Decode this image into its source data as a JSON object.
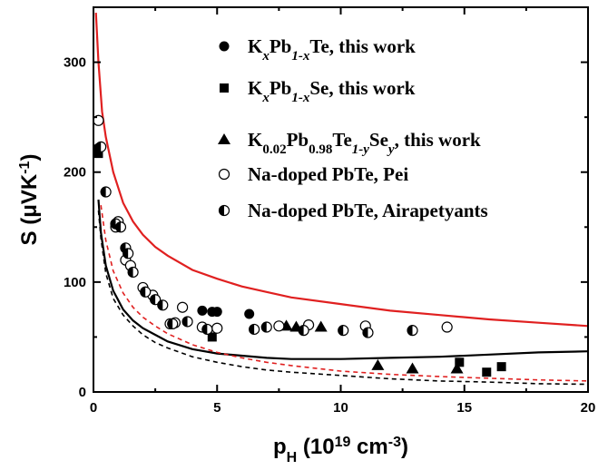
{
  "chart_data": {
    "type": "scatter",
    "xlabel": {
      "base": "p",
      "sub": "H",
      "units_pre": " (10",
      "units_sup": "19",
      "units_mid": " cm",
      "units_sup2": "-3",
      "units_post": ")"
    },
    "ylabel": {
      "pre": "S (μVK",
      "sup": "-1",
      "post": ")"
    },
    "xlim": [
      0,
      20
    ],
    "ylim": [
      0,
      350
    ],
    "xticks": [
      0,
      5,
      10,
      15,
      20
    ],
    "yticks": [
      0,
      100,
      200,
      300
    ],
    "grid": false,
    "legend_position": "top-right",
    "series": [
      {
        "name": "KxPb1-xTe, this work",
        "legend_parts": [
          [
            "K",
            "n"
          ],
          [
            "x",
            "sub-i"
          ],
          [
            "Pb",
            "n"
          ],
          [
            "1-x",
            "sub-i"
          ],
          [
            "Te, this work",
            "n"
          ]
        ],
        "marker": "circle-filled",
        "points": [
          [
            0.2,
            222
          ],
          [
            4.4,
            74
          ],
          [
            4.8,
            73
          ],
          [
            5.0,
            73
          ],
          [
            6.3,
            71
          ]
        ]
      },
      {
        "name": "KxPb1-xSe, this work",
        "legend_parts": [
          [
            "K",
            "n"
          ],
          [
            "x",
            "sub-i"
          ],
          [
            "Pb",
            "n"
          ],
          [
            "1-x",
            "sub-i"
          ],
          [
            "Se, this work",
            "n"
          ]
        ],
        "marker": "square-filled",
        "points": [
          [
            0.2,
            217
          ],
          [
            4.8,
            50
          ],
          [
            14.8,
            27
          ],
          [
            15.9,
            18
          ],
          [
            16.5,
            23
          ]
        ]
      },
      {
        "name": "K0.02Pb0.98Te1-ySey, this work",
        "legend_parts": [
          [
            "K",
            "n"
          ],
          [
            "0.02",
            "sub"
          ],
          [
            "Pb",
            "n"
          ],
          [
            "0.98",
            "sub"
          ],
          [
            "Te",
            "n"
          ],
          [
            "1-y",
            "sub-i"
          ],
          [
            "Se",
            "n"
          ],
          [
            "y",
            "sub-i"
          ],
          [
            ",  this work",
            "n"
          ]
        ],
        "marker": "triangle-filled",
        "points": [
          [
            7.8,
            60
          ],
          [
            8.2,
            59
          ],
          [
            9.2,
            59
          ],
          [
            11.5,
            24
          ],
          [
            12.9,
            21
          ],
          [
            14.7,
            21
          ]
        ]
      },
      {
        "name": "Na-doped PbTe, Pei",
        "legend_parts": [
          [
            "Na-doped PbTe, Pei",
            "n"
          ]
        ],
        "marker": "circle-open",
        "points": [
          [
            0.2,
            247
          ],
          [
            0.9,
            150
          ],
          [
            1.0,
            155
          ],
          [
            1.3,
            120
          ],
          [
            1.5,
            115
          ],
          [
            2.0,
            95
          ],
          [
            2.4,
            88
          ],
          [
            3.1,
            62
          ],
          [
            3.3,
            63
          ],
          [
            3.6,
            77
          ],
          [
            4.4,
            59
          ],
          [
            5.0,
            58
          ],
          [
            7.5,
            60
          ],
          [
            8.7,
            61
          ],
          [
            11.0,
            60
          ],
          [
            14.3,
            59
          ]
        ]
      },
      {
        "name": "Na-doped PbTe, Airapetyants",
        "legend_parts": [
          [
            "Na-doped PbTe, Airapetyants",
            "n"
          ]
        ],
        "marker": "circle-half",
        "points": [
          [
            0.3,
            223
          ],
          [
            0.5,
            182
          ],
          [
            0.9,
            153
          ],
          [
            1.1,
            150
          ],
          [
            1.3,
            131
          ],
          [
            1.4,
            126
          ],
          [
            1.6,
            109
          ],
          [
            2.1,
            91
          ],
          [
            2.5,
            84
          ],
          [
            2.8,
            79
          ],
          [
            3.2,
            62
          ],
          [
            3.8,
            64
          ],
          [
            4.6,
            57
          ],
          [
            6.5,
            57
          ],
          [
            7.0,
            59
          ],
          [
            8.5,
            56
          ],
          [
            10.1,
            56
          ],
          [
            11.1,
            54
          ],
          [
            12.9,
            56
          ]
        ]
      }
    ],
    "curves": [
      {
        "style": "solid",
        "color": "#e02020",
        "points": [
          [
            0.1,
            345
          ],
          [
            0.2,
            300
          ],
          [
            0.35,
            255
          ],
          [
            0.5,
            232
          ],
          [
            0.8,
            200
          ],
          [
            1.2,
            172
          ],
          [
            1.6,
            155
          ],
          [
            2,
            143
          ],
          [
            2.5,
            132
          ],
          [
            3,
            124
          ],
          [
            4,
            111
          ],
          [
            5,
            103
          ],
          [
            6,
            96
          ],
          [
            7,
            91
          ],
          [
            8,
            86
          ],
          [
            10,
            80
          ],
          [
            12,
            74
          ],
          [
            14,
            70
          ],
          [
            16,
            66
          ],
          [
            18,
            63
          ],
          [
            20,
            60
          ]
        ]
      },
      {
        "style": "solid",
        "color": "#000000",
        "points": [
          [
            0.2,
            175
          ],
          [
            0.3,
            145
          ],
          [
            0.5,
            115
          ],
          [
            0.8,
            92
          ],
          [
            1.2,
            75
          ],
          [
            1.6,
            65
          ],
          [
            2,
            58
          ],
          [
            2.5,
            52
          ],
          [
            3,
            46
          ],
          [
            4,
            39
          ],
          [
            5,
            35
          ],
          [
            6,
            33
          ],
          [
            7,
            31
          ],
          [
            8,
            30
          ],
          [
            10,
            30
          ],
          [
            12,
            31
          ],
          [
            14,
            32
          ],
          [
            16,
            34
          ],
          [
            18,
            36
          ],
          [
            20,
            37
          ]
        ]
      },
      {
        "style": "dashed",
        "color": "#e02020",
        "points": [
          [
            0.3,
            170
          ],
          [
            0.5,
            138
          ],
          [
            0.8,
            110
          ],
          [
            1.2,
            90
          ],
          [
            1.6,
            77
          ],
          [
            2,
            68
          ],
          [
            2.5,
            60
          ],
          [
            3,
            53
          ],
          [
            4,
            43
          ],
          [
            5,
            36
          ],
          [
            6,
            31
          ],
          [
            7,
            27
          ],
          [
            8,
            24
          ],
          [
            10,
            19
          ],
          [
            12,
            16
          ],
          [
            14,
            14
          ],
          [
            16,
            12.5
          ],
          [
            18,
            11
          ],
          [
            20,
            10
          ]
        ]
      },
      {
        "style": "dashed",
        "color": "#000000",
        "points": [
          [
            0.2,
            165
          ],
          [
            0.3,
            140
          ],
          [
            0.5,
            108
          ],
          [
            0.8,
            85
          ],
          [
            1.2,
            70
          ],
          [
            1.6,
            60
          ],
          [
            2,
            52
          ],
          [
            2.5,
            45
          ],
          [
            3,
            40
          ],
          [
            4,
            32
          ],
          [
            5,
            27
          ],
          [
            6,
            23
          ],
          [
            7,
            20
          ],
          [
            8,
            18
          ],
          [
            10,
            15
          ],
          [
            12,
            12
          ],
          [
            14,
            10
          ],
          [
            16,
            9
          ],
          [
            18,
            7.5
          ],
          [
            20,
            7
          ]
        ]
      }
    ]
  }
}
